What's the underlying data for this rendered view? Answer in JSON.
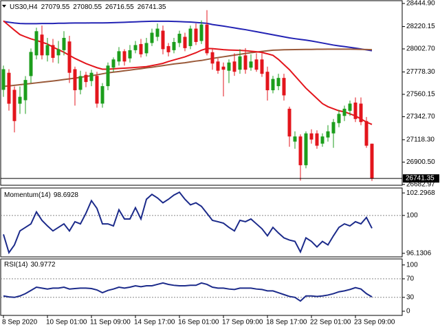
{
  "chart_data": [
    {
      "type": "candlestick",
      "title": "US30,H4",
      "categories": [
        "8 Sep 2020",
        null,
        null,
        null,
        null,
        null,
        null,
        null,
        "10 Sep 01:00",
        null,
        null,
        null,
        null,
        null,
        null,
        null,
        "11 Sep 09:00",
        null,
        null,
        null,
        null,
        null,
        null,
        null,
        "14 Sep 17:00",
        null,
        null,
        null,
        null,
        null,
        null,
        null,
        "16 Sep 01:00",
        null,
        null,
        null,
        null,
        null,
        null,
        null,
        "17 Sep 09:00",
        null,
        null,
        null,
        null,
        null,
        null,
        null,
        "18 Sep 17:00",
        null,
        null,
        null,
        null,
        null,
        null,
        null,
        "22 Sep 01:00",
        null,
        null,
        null,
        null,
        null,
        null,
        null,
        "23 Sep 09:00",
        null,
        null,
        null
      ],
      "ohlc": {
        "open": [
          27604,
          27770,
          27604,
          27469,
          27503,
          27738,
          27940,
          28142,
          27940,
          28040,
          27940,
          27990,
          28075,
          27805,
          27604,
          27750,
          27690,
          27740,
          27470,
          27640,
          27820,
          27880,
          27980,
          27910,
          27990,
          28050,
          27960,
          28060,
          28120,
          28180,
          28030,
          27990,
          28060,
          28120,
          28030,
          28200,
          28080,
          28240,
          27970,
          27880,
          27830,
          27790,
          27880,
          27800,
          27940,
          27820,
          27900,
          27900,
          27780,
          27600,
          27640,
          27720,
          27420,
          27100,
          27150,
          26870,
          27180,
          27180,
          27080,
          27140,
          27180,
          27280,
          27350,
          27400,
          27480,
          27470,
          27300,
          27079.55
        ],
        "high": [
          27840,
          27805,
          27637,
          27637,
          27738,
          28007,
          28209,
          28230,
          28110,
          28100,
          28080,
          28175,
          28130,
          27830,
          27790,
          27780,
          27800,
          27780,
          27670,
          27870,
          27920,
          28020,
          28000,
          28040,
          28080,
          28100,
          28110,
          28200,
          28250,
          28230,
          28060,
          28110,
          28180,
          28160,
          28230,
          28250,
          28280,
          28380,
          28000,
          27910,
          27870,
          27900,
          27960,
          28000,
          28010,
          27950,
          27960,
          27960,
          27830,
          27740,
          27760,
          27760,
          27440,
          27200,
          27170,
          27200,
          27220,
          27210,
          27180,
          27260,
          27320,
          27410,
          27450,
          27500,
          27530,
          27530,
          27340,
          27080.55
        ],
        "low": [
          27536,
          27402,
          27190,
          27370,
          27370,
          27671,
          27900,
          27900,
          27880,
          27870,
          27860,
          27940,
          27671,
          27450,
          27560,
          27630,
          27640,
          27430,
          27430,
          27600,
          27780,
          27840,
          27840,
          27870,
          27960,
          27920,
          27930,
          28030,
          28080,
          27950,
          27930,
          27960,
          28020,
          27980,
          28000,
          28040,
          28050,
          27940,
          27800,
          27760,
          27540,
          27670,
          27740,
          27760,
          27760,
          27790,
          27780,
          27730,
          27500,
          27570,
          27600,
          27500,
          27050,
          27030,
          26720,
          26840,
          27080,
          27030,
          27050,
          27100,
          27040,
          27240,
          27300,
          27350,
          27290,
          27260,
          27040,
          26716.55
        ],
        "close": [
          27805,
          27469,
          27300,
          27536,
          27700,
          27973,
          28175,
          27940,
          28040,
          27915,
          28000,
          28110,
          27770,
          27600,
          27738,
          27680,
          27770,
          27470,
          27640,
          27840,
          27900,
          27980,
          27880,
          27990,
          28040,
          27950,
          28060,
          28160,
          28200,
          28000,
          27970,
          28070,
          28150,
          28010,
          28200,
          28070,
          28240,
          27960,
          27860,
          27790,
          27800,
          27870,
          27780,
          27930,
          27800,
          27880,
          27800,
          27760,
          27600,
          27710,
          27720,
          27550,
          27150,
          27150,
          26870,
          27180,
          27120,
          27060,
          27150,
          27200,
          27290,
          27370,
          27420,
          27470,
          27320,
          27290,
          27060,
          26741.35
        ]
      },
      "up_color": "#1c9e1c",
      "down_color": "#e3151c",
      "overlays": [
        {
          "color": "#2323b4",
          "values": [
            28270,
            28262,
            28255,
            28250,
            28248,
            28248,
            28248,
            28250,
            28250,
            28250,
            28252,
            28252,
            28254,
            28255,
            28255,
            28255,
            28256,
            28256,
            28256,
            28257,
            28258,
            28260,
            28262,
            28264,
            28266,
            28268,
            28270,
            28272,
            28272,
            28272,
            28272,
            28270,
            28268,
            28266,
            28264,
            28260,
            28256,
            28252,
            28240,
            28232,
            28225,
            28216,
            28207,
            28198,
            28190,
            28180,
            28170,
            28160,
            28150,
            28140,
            28130,
            28120,
            28110,
            28102,
            28095,
            28088,
            28080,
            28070,
            28060,
            28050,
            28040,
            28032,
            28025,
            28018,
            28010,
            28002,
            27993,
            27985
          ]
        },
        {
          "color": "#9a5a3a",
          "values": [
            27637,
            27642,
            27648,
            27654,
            27660,
            27666,
            27672,
            27678,
            27684,
            27690,
            27697,
            27704,
            27711,
            27718,
            27726,
            27734,
            27742,
            27750,
            27760,
            27770,
            27776,
            27782,
            27790,
            27796,
            27804,
            27810,
            27818,
            27824,
            27832,
            27840,
            27848,
            27856,
            27862,
            27868,
            27876,
            27884,
            27890,
            27900,
            27910,
            27918,
            27926,
            27934,
            27942,
            27950,
            27958,
            27966,
            27972,
            27978,
            27984,
            27990,
            27992,
            27994,
            27995,
            27996,
            27997,
            27998,
            27998,
            27999,
            27999,
            28000,
            28000,
            28000,
            28000,
            28000,
            27999,
            27998,
            27997,
            27995
          ]
        },
        {
          "color": "#e3151c",
          "values": [
            28276,
            28230,
            28185,
            28142,
            28120,
            28100,
            28085,
            28068,
            28050,
            28020,
            27995,
            27970,
            27940,
            27910,
            27885,
            27860,
            27840,
            27820,
            27805,
            27805,
            27808,
            27812,
            27815,
            27818,
            27822,
            27826,
            27830,
            27840,
            27850,
            27862,
            27880,
            27895,
            27910,
            27925,
            27945,
            27965,
            27990,
            28007,
            28005,
            28000,
            27995,
            27992,
            27990,
            27988,
            27985,
            27980,
            27975,
            27968,
            27955,
            27940,
            27900,
            27850,
            27800,
            27740,
            27680,
            27620,
            27570,
            27520,
            27470,
            27440,
            27420,
            27400,
            27390,
            27370,
            27350,
            27320,
            27290,
            27267
          ]
        }
      ],
      "ylim": [
        26675,
        28472
      ],
      "yticks": [
        {
          "value": 28444.9,
          "label": "28444.90"
        },
        28220.15,
        {
          "value": 28002.7,
          "label": "28002.70"
        },
        {
          "value": 27778.3,
          "label": "27778.30"
        },
        27560.15,
        {
          "value": 27342.7,
          "label": "27342.70"
        },
        {
          "value": 27118.3,
          "label": "27118.30"
        },
        {
          "value": 26900.5,
          "label": "26900.50"
        },
        26682.97
      ]
    },
    {
      "type": "line",
      "title": "Momentum(14)",
      "color": "#1b2a8a",
      "values": [
        98.07,
        96.2,
        96.99,
        98.42,
        98.78,
        99.14,
        100.36,
        99.5,
        98.93,
        98.42,
        98.78,
        99.14,
        98.42,
        99.36,
        99.14,
        100.22,
        101.51,
        100.72,
        99.14,
        99.14,
        98.93,
        100.58,
        99.64,
        99.64,
        100.79,
        99.64,
        101.65,
        102.15,
        101.79,
        101.29,
        101.65,
        102.08,
        102.37,
        101.65,
        101.08,
        101.29,
        100.93,
        100.22,
        99.5,
        99.36,
        99.21,
        98.78,
        98.42,
        99.5,
        99.36,
        99.64,
        99.14,
        98.64,
        97.92,
        98.78,
        98.21,
        97.71,
        97.49,
        97.35,
        96.27,
        97.71,
        97.35,
        96.78,
        97.35,
        96.99,
        97.92,
        98.78,
        99.14,
        98.93,
        99.36,
        99.14,
        99.79,
        98.6928
      ],
      "ylim": [
        95.77,
        102.8
      ],
      "yticks": [
        102.2968,
        100,
        96.1306
      ],
      "level_lines": true
    },
    {
      "type": "line",
      "title": "RSI(14)",
      "color": "#1b2a8a",
      "values": [
        33,
        31,
        30,
        33,
        38,
        45,
        52,
        50,
        48,
        50,
        50,
        52,
        48,
        49,
        50,
        50,
        49,
        46,
        40,
        45,
        48,
        52,
        50,
        52,
        55,
        53,
        55,
        55,
        58,
        61,
        58,
        56,
        55,
        55,
        56,
        56,
        61,
        58,
        52,
        50,
        50,
        48,
        47,
        50,
        50,
        50,
        48,
        47,
        44,
        44,
        40,
        36,
        32,
        30,
        22,
        33,
        33,
        32,
        33,
        35,
        38,
        42,
        44,
        47,
        51,
        48,
        38,
        30.9772
      ],
      "ylim": [
        -9,
        113
      ],
      "yticks": [
        100,
        70,
        30,
        0
      ],
      "level_lines": true
    }
  ]
}
